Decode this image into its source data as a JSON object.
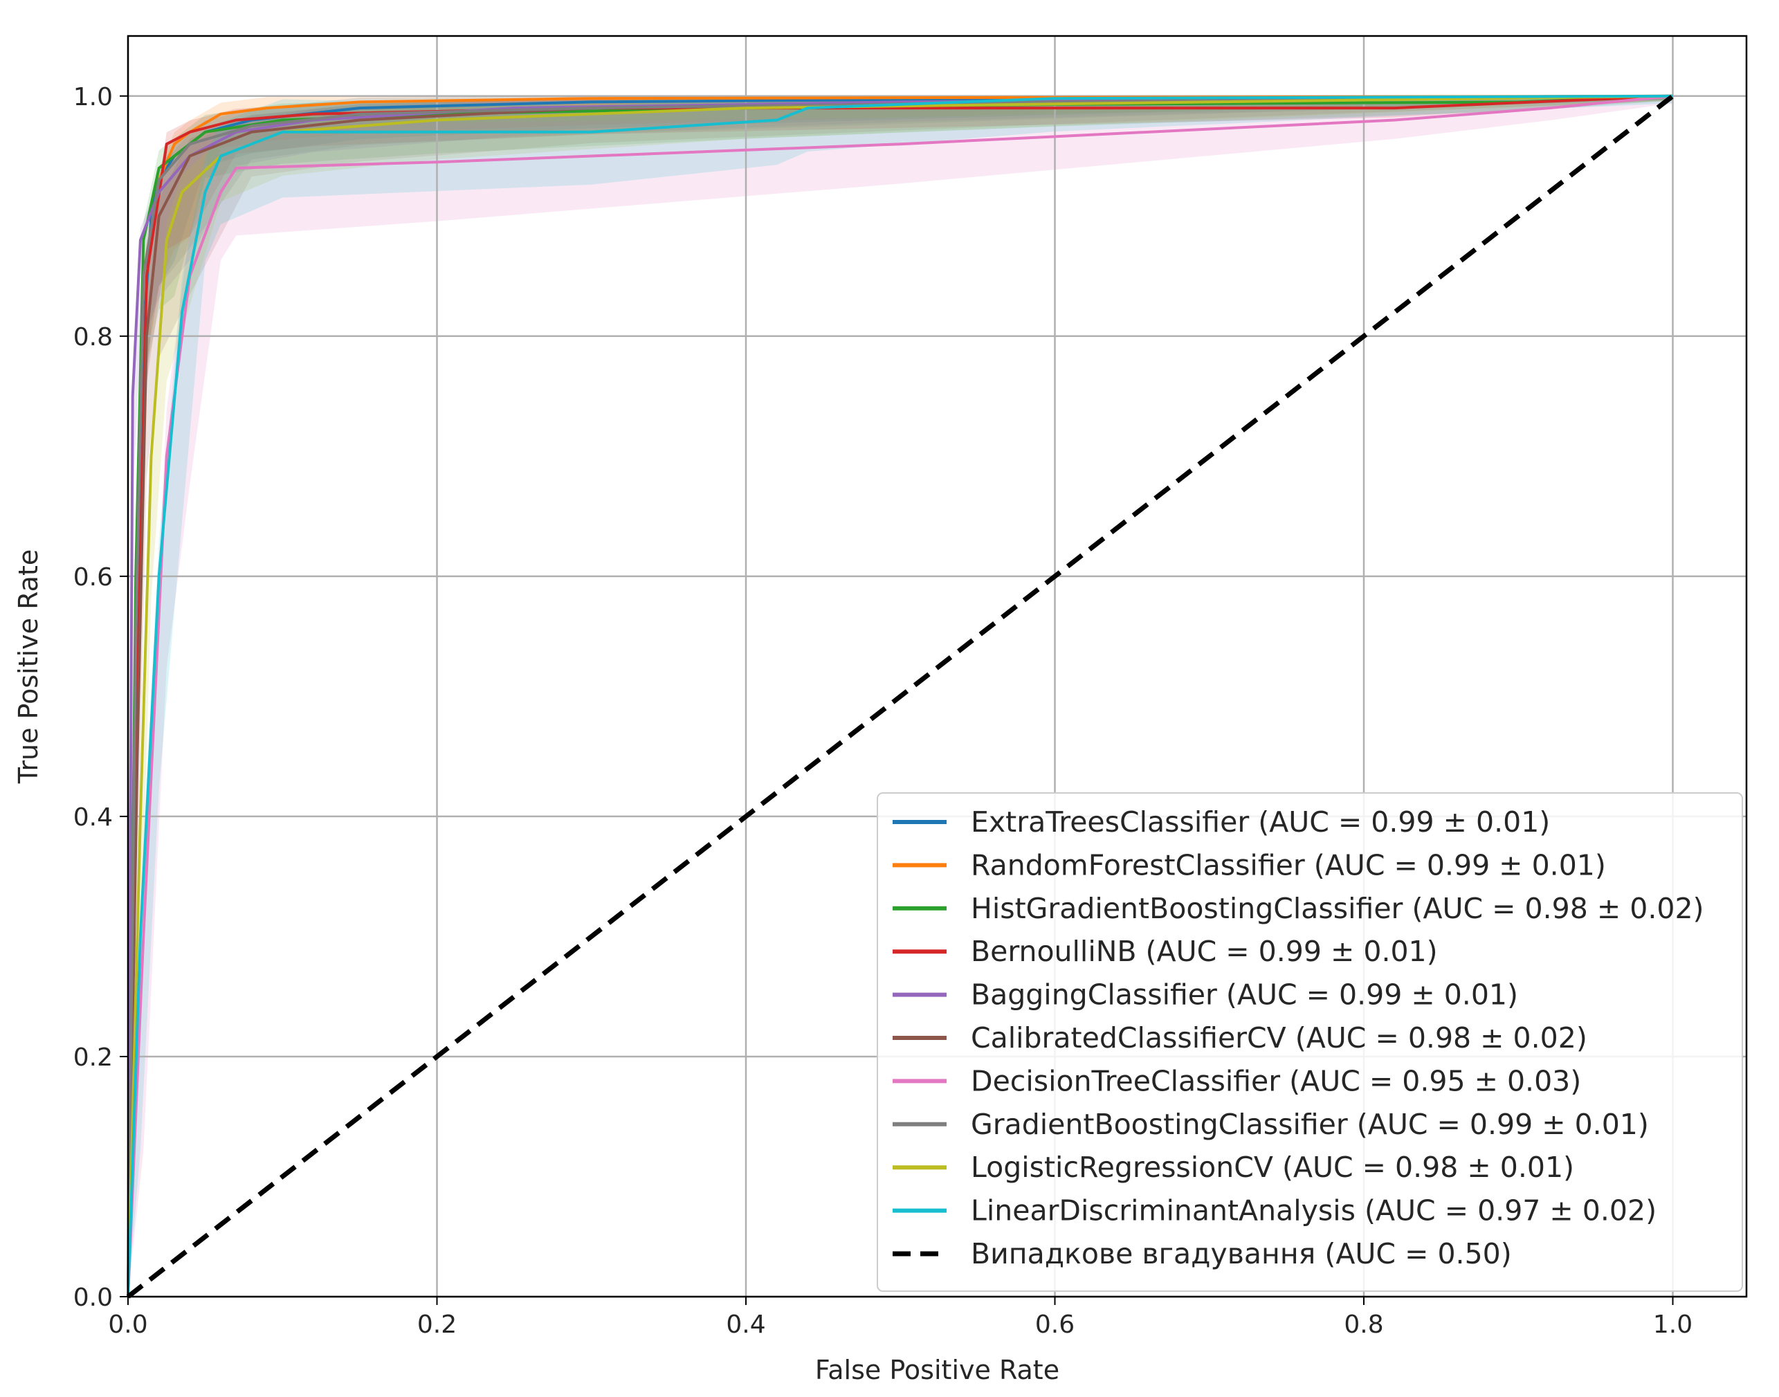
{
  "chart_data": {
    "type": "line",
    "title": "",
    "xlabel": "False Positive Rate",
    "ylabel": "True Positive Rate",
    "xlim": [
      0.0,
      1.0
    ],
    "ylim": [
      0.0,
      1.0
    ],
    "xticks": [
      "0.0",
      "0.2",
      "0.4",
      "0.6",
      "0.8",
      "1.0"
    ],
    "yticks": [
      "0.0",
      "0.2",
      "0.4",
      "0.6",
      "0.8",
      "1.0"
    ],
    "grid": true,
    "legend_position": "lower-right",
    "series": [
      {
        "name": "ExtraTreesClassifier (AUC = 0.99 ± 0.01)",
        "color": "#1f77b4",
        "points": [
          [
            0,
            0
          ],
          [
            0.005,
            0.5
          ],
          [
            0.01,
            0.8
          ],
          [
            0.015,
            0.9
          ],
          [
            0.02,
            0.93
          ],
          [
            0.03,
            0.95
          ],
          [
            0.05,
            0.97
          ],
          [
            0.08,
            0.98
          ],
          [
            0.15,
            0.99
          ],
          [
            0.3,
            0.995
          ],
          [
            0.6,
            0.998
          ],
          [
            1,
            1
          ]
        ],
        "band": [
          0.03,
          0.01
        ]
      },
      {
        "name": "RandomForestClassifier (AUC = 0.99 ± 0.01)",
        "color": "#ff7f0e",
        "points": [
          [
            0,
            0
          ],
          [
            0.005,
            0.55
          ],
          [
            0.01,
            0.85
          ],
          [
            0.02,
            0.93
          ],
          [
            0.03,
            0.96
          ],
          [
            0.04,
            0.97
          ],
          [
            0.06,
            0.985
          ],
          [
            0.09,
            0.99
          ],
          [
            0.15,
            0.995
          ],
          [
            0.3,
            0.998
          ],
          [
            1,
            1
          ]
        ],
        "band": [
          0.03,
          0.01
        ]
      },
      {
        "name": "HistGradientBoostingClassifier (AUC = 0.98 ± 0.02)",
        "color": "#2ca02c",
        "points": [
          [
            0,
            0
          ],
          [
            0.005,
            0.6
          ],
          [
            0.01,
            0.88
          ],
          [
            0.02,
            0.94
          ],
          [
            0.03,
            0.95
          ],
          [
            0.05,
            0.97
          ],
          [
            0.1,
            0.98
          ],
          [
            0.2,
            0.985
          ],
          [
            0.4,
            0.99
          ],
          [
            0.6,
            0.993
          ],
          [
            0.9,
            0.995
          ],
          [
            1,
            1
          ]
        ],
        "band": [
          0.04,
          0.015
        ]
      },
      {
        "name": "BernoulliNB (AUC = 0.99 ± 0.01)",
        "color": "#d62728",
        "points": [
          [
            0,
            0
          ],
          [
            0.006,
            0.5
          ],
          [
            0.012,
            0.85
          ],
          [
            0.025,
            0.96
          ],
          [
            0.04,
            0.97
          ],
          [
            0.07,
            0.98
          ],
          [
            0.12,
            0.985
          ],
          [
            0.3,
            0.99
          ],
          [
            0.6,
            0.99
          ],
          [
            0.82,
            0.99
          ],
          [
            1,
            1
          ]
        ],
        "band": [
          0.03,
          0.01
        ]
      },
      {
        "name": "BaggingClassifier (AUC = 0.99 ± 0.01)",
        "color": "#9467bd",
        "points": [
          [
            0,
            0
          ],
          [
            0.003,
            0.75
          ],
          [
            0.008,
            0.88
          ],
          [
            0.02,
            0.92
          ],
          [
            0.04,
            0.95
          ],
          [
            0.07,
            0.97
          ],
          [
            0.12,
            0.98
          ],
          [
            0.25,
            0.99
          ],
          [
            0.5,
            0.995
          ],
          [
            1,
            1
          ]
        ],
        "band": [
          0.03,
          0.01
        ]
      },
      {
        "name": "CalibratedClassifierCV (AUC = 0.98 ± 0.02)",
        "color": "#8c564b",
        "points": [
          [
            0,
            0
          ],
          [
            0.006,
            0.45
          ],
          [
            0.012,
            0.8
          ],
          [
            0.02,
            0.9
          ],
          [
            0.04,
            0.95
          ],
          [
            0.08,
            0.97
          ],
          [
            0.15,
            0.98
          ],
          [
            0.3,
            0.99
          ],
          [
            0.6,
            0.995
          ],
          [
            1,
            1
          ]
        ],
        "band": [
          0.04,
          0.015
        ]
      },
      {
        "name": "DecisionTreeClassifier (AUC = 0.95 ± 0.03)",
        "color": "#e377c2",
        "points": [
          [
            0,
            0
          ],
          [
            0.01,
            0.3
          ],
          [
            0.025,
            0.7
          ],
          [
            0.04,
            0.85
          ],
          [
            0.06,
            0.92
          ],
          [
            0.07,
            0.94
          ],
          [
            0.2,
            0.945
          ],
          [
            0.5,
            0.96
          ],
          [
            0.82,
            0.98
          ],
          [
            0.92,
            0.99
          ],
          [
            1,
            1
          ]
        ],
        "band": [
          0.06,
          0.04
        ]
      },
      {
        "name": "GradientBoostingClassifier (AUC = 0.99 ± 0.01)",
        "color": "#7f7f7f",
        "points": [
          [
            0,
            0
          ],
          [
            0.005,
            0.55
          ],
          [
            0.01,
            0.85
          ],
          [
            0.02,
            0.93
          ],
          [
            0.04,
            0.96
          ],
          [
            0.08,
            0.975
          ],
          [
            0.15,
            0.985
          ],
          [
            0.3,
            0.99
          ],
          [
            0.6,
            0.995
          ],
          [
            1,
            1
          ]
        ],
        "band": [
          0.03,
          0.01
        ]
      },
      {
        "name": "LogisticRegressionCV (AUC = 0.98 ± 0.01)",
        "color": "#bcbd22",
        "points": [
          [
            0,
            0
          ],
          [
            0.008,
            0.4
          ],
          [
            0.015,
            0.7
          ],
          [
            0.025,
            0.88
          ],
          [
            0.035,
            0.92
          ],
          [
            0.06,
            0.95
          ],
          [
            0.1,
            0.97
          ],
          [
            0.2,
            0.98
          ],
          [
            0.4,
            0.99
          ],
          [
            0.7,
            0.995
          ],
          [
            1,
            1
          ]
        ],
        "band": [
          0.04,
          0.015
        ]
      },
      {
        "name": "LinearDiscriminantAnalysis (AUC = 0.97 ± 0.02)",
        "color": "#17becf",
        "points": [
          [
            0,
            0
          ],
          [
            0.008,
            0.3
          ],
          [
            0.02,
            0.6
          ],
          [
            0.035,
            0.82
          ],
          [
            0.05,
            0.92
          ],
          [
            0.06,
            0.95
          ],
          [
            0.1,
            0.97
          ],
          [
            0.3,
            0.97
          ],
          [
            0.42,
            0.98
          ],
          [
            0.44,
            0.99
          ],
          [
            0.6,
            0.998
          ],
          [
            1,
            1
          ]
        ],
        "band": [
          0.06,
          0.03
        ]
      },
      {
        "name": "Випадкове вгадування (AUC = 0.50)",
        "color": "#000000",
        "dashed": true,
        "points": [
          [
            0,
            0
          ],
          [
            1,
            1
          ]
        ]
      }
    ]
  }
}
